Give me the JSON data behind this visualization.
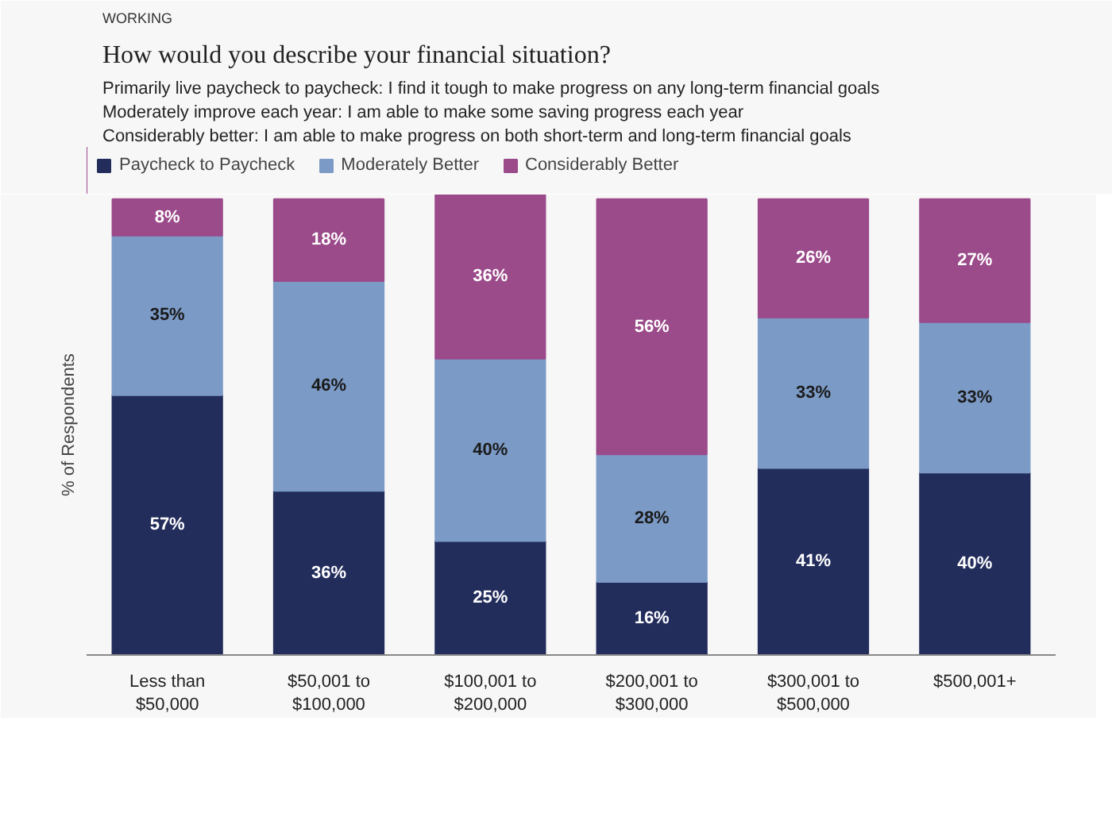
{
  "chart_data": {
    "type": "bar",
    "stacked": true,
    "title": "How would you describe your financial situation?",
    "annotations": [
      "WORKING",
      "Primarily live paycheck to paycheck: I find it tough to make progress on any long-term financial goals",
      "Moderately improve each year: I am able to make some saving progress each year",
      "Considerably better: I am able to make progress on both short-term and long-term financial goals"
    ],
    "ylabel": "% of Respondents",
    "categories": [
      "Less than\n$50,000",
      "$50,001 to\n$100,000",
      "$100,001 to\n$200,000",
      "$200,001 to\n$300,000",
      "$300,001 to\n$500,000",
      "$500,001+"
    ],
    "ylim": [
      0,
      101
    ],
    "tick_labels": "x",
    "grid": false,
    "legend": "top left",
    "series": [
      {
        "name": "Paycheck to Paycheck",
        "color": "#232d5c",
        "values": [
          57,
          36,
          25,
          16,
          41,
          40
        ],
        "value_labels": [
          "57%",
          "36%",
          "25%",
          "16%",
          "41%",
          "40%"
        ]
      },
      {
        "name": "Moderately Better",
        "color": "#7b9ac6",
        "values": [
          35,
          46,
          40,
          28,
          33,
          33
        ],
        "value_labels": [
          "35%",
          "46%",
          "40%",
          "28%",
          "33%",
          "33%"
        ]
      },
      {
        "name": "Considerably Better",
        "color": "#9b4a8a",
        "values": [
          8,
          18,
          36,
          56,
          26,
          27
        ],
        "value_labels": [
          "8%",
          "18%",
          "36%",
          "56%",
          "26%",
          "27%"
        ]
      }
    ]
  }
}
